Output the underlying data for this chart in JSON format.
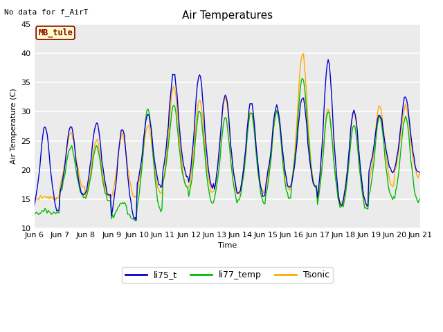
{
  "title": "Air Temperatures",
  "ylabel": "Air Temperature (C)",
  "xlabel": "Time",
  "ylim": [
    10,
    45
  ],
  "xlim": [
    0,
    360
  ],
  "note": "No data for f_AirT",
  "mb_tule_label": "MB_tule",
  "legend_entries": [
    "li75_t",
    "li77_temp",
    "Tsonic"
  ],
  "legend_colors": [
    "#0000cc",
    "#00bb00",
    "#ffaa00"
  ],
  "bg_color": "#ffffff",
  "plot_bg_color": "#ebebeb",
  "x_tick_labels": [
    "Jun 6",
    "Jun 7",
    "Jun 8",
    "Jun 9",
    "Jun 10",
    "Jun 11",
    "Jun 12",
    "Jun 13",
    "Jun 14",
    "Jun 15",
    "Jun 16",
    "Jun 17",
    "Jun 18",
    "Jun 19",
    "Jun 20",
    "Jun 21"
  ],
  "x_tick_positions": [
    0,
    24,
    48,
    72,
    96,
    120,
    144,
    168,
    192,
    216,
    240,
    264,
    288,
    312,
    336,
    360
  ],
  "y_tick_positions": [
    10,
    15,
    20,
    25,
    30,
    35,
    40,
    45
  ],
  "title_fontsize": 11,
  "label_fontsize": 8,
  "tick_fontsize": 8,
  "linewidth": 1.0,
  "day_peaks_blue": [
    27.5,
    27.5,
    28.0,
    27.0,
    29.5,
    36.5,
    36.5,
    33.0,
    31.5,
    31.0,
    32.5,
    38.5,
    30.0,
    29.5,
    32.5
  ],
  "day_troughs_blue": [
    13.0,
    15.5,
    15.5,
    11.5,
    17.0,
    19.0,
    17.0,
    16.0,
    15.5,
    17.0,
    17.0,
    14.0,
    14.0,
    19.5,
    19.5
  ],
  "day_peaks_green": [
    13.0,
    24.0,
    24.0,
    14.5,
    30.5,
    31.0,
    30.0,
    29.0,
    30.0,
    30.0,
    36.0,
    30.0,
    27.5,
    29.0,
    29.0
  ],
  "day_troughs_green": [
    12.5,
    15.5,
    14.5,
    11.5,
    13.0,
    17.0,
    14.5,
    14.5,
    14.5,
    15.0,
    17.0,
    13.5,
    13.0,
    15.0,
    14.5
  ],
  "day_peaks_orange": [
    15.5,
    26.5,
    25.0,
    26.0,
    27.5,
    34.5,
    32.0,
    32.5,
    30.0,
    30.0,
    40.0,
    30.5,
    30.0,
    31.0,
    31.0
  ],
  "day_troughs_orange": [
    15.0,
    17.0,
    15.0,
    15.0,
    16.0,
    17.0,
    16.0,
    16.0,
    16.0,
    16.5,
    17.0,
    14.0,
    14.0,
    17.0,
    19.0
  ]
}
